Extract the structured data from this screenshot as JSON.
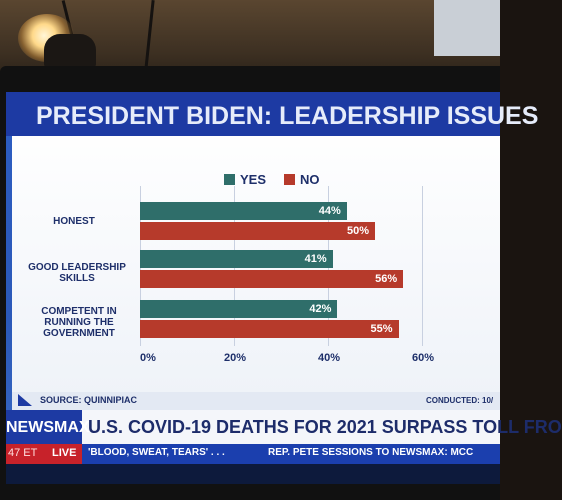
{
  "graphic": {
    "title": "PRESIDENT BIDEN: LEADERSHIP ISSUES",
    "source": "SOURCE: QUINNIPIAC",
    "conducted": "CONDUCTED: 10/"
  },
  "chart_data": {
    "type": "bar",
    "orientation": "horizontal",
    "title": "PRESIDENT BIDEN: LEADERSHIP ISSUES",
    "categories": [
      "HONEST",
      "GOOD LEADERSHIP SKILLS",
      "COMPETENT IN RUNNING THE GOVERNMENT"
    ],
    "series": [
      {
        "name": "YES",
        "values": [
          44,
          41,
          42
        ],
        "color": "#2f6e6a",
        "labels": [
          "44%",
          "41%",
          "42%"
        ]
      },
      {
        "name": "NO",
        "values": [
          50,
          56,
          55
        ],
        "color": "#b63a2b",
        "labels": [
          "50%",
          "56%",
          "55%"
        ]
      }
    ],
    "xlim": [
      0,
      60
    ],
    "ticks": [
      "0%",
      "20%",
      "40%",
      "60%"
    ],
    "legend_position": "top-center",
    "grid": true
  },
  "ticker": {
    "brand": "NEWSMAX",
    "headline": "U.S. COVID-19 DEATHS FOR 2021 SURPASS TOLL FRO",
    "time": "47 ET",
    "live": "LIVE",
    "item1": "'BLOOD, SWEAT, TEARS' . . .",
    "item2": "REP. PETE SESSIONS TO NEWSMAX: MCC"
  }
}
